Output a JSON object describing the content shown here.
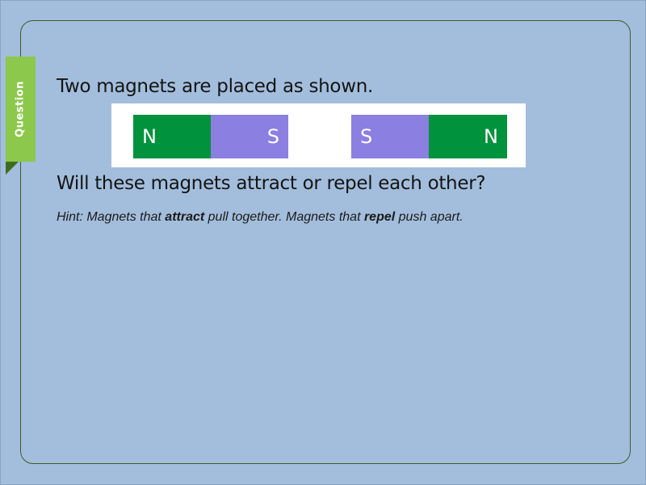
{
  "tab": {
    "label": "Question"
  },
  "question": {
    "prompt": "Two magnets are placed as shown.",
    "ask": "Will these magnets attract or repel each other?"
  },
  "hint": {
    "part1": "Hint: Magnets that ",
    "attract": "attract",
    "part2": " pull together. Magnets that ",
    "repel": "repel",
    "part3": " push apart."
  },
  "magnets": {
    "left": {
      "pole_a": "N",
      "pole_b": "S"
    },
    "right": {
      "pole_a": "S",
      "pole_b": "N"
    }
  },
  "colors": {
    "background": "#a3bedc",
    "north": "#00923c",
    "south": "#8b7fe2",
    "tab": "#8cc84b"
  }
}
